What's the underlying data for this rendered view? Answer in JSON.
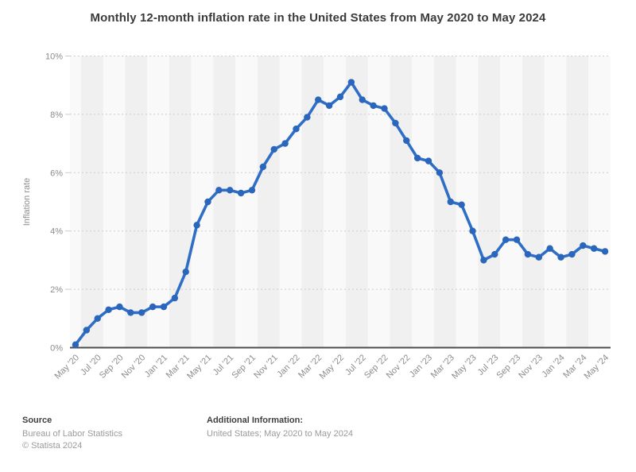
{
  "title": "Monthly 12-month inflation rate in the United States from May 2020 to May 2024",
  "chart_data": {
    "type": "line",
    "title": "Monthly 12-month inflation rate in the United States from May 2020 to May 2024",
    "xlabel": "",
    "ylabel": "Inflation rate",
    "ylim": [
      0,
      10
    ],
    "ytick_step": 2,
    "ytick_labels": [
      "0%",
      "2%",
      "4%",
      "6%",
      "8%",
      "10%"
    ],
    "xticks_every": 2,
    "grid": "horizontal-dotted",
    "legend": false,
    "background_bands": "alternating-vertical",
    "categories": [
      "May '20",
      "Jun '20",
      "Jul '20",
      "Aug '20",
      "Sep '20",
      "Oct '20",
      "Nov '20",
      "Dec '20",
      "Jan '21",
      "Feb '21",
      "Mar '21",
      "Apr '21",
      "May '21",
      "Jun '21",
      "Jul '21",
      "Aug '21",
      "Sep '21",
      "Oct '21",
      "Nov '21",
      "Dec '21",
      "Jan '22",
      "Feb '22",
      "Mar '22",
      "Apr '22",
      "May '22",
      "Jun '22",
      "Jul '22",
      "Aug '22",
      "Sep '22",
      "Oct '22",
      "Nov '22",
      "Dec '22",
      "Jan '23",
      "Feb '23",
      "Mar '23",
      "Apr '23",
      "May '23",
      "Jun '23",
      "Jul '23",
      "Aug '23",
      "Sep '23",
      "Oct '23",
      "Nov '23",
      "Dec '23",
      "Jan '24",
      "Feb '24",
      "Mar '24",
      "Apr '24",
      "May '24"
    ],
    "series": [
      {
        "name": "Inflation rate",
        "values": [
          0.1,
          0.6,
          1.0,
          1.3,
          1.4,
          1.2,
          1.2,
          1.4,
          1.4,
          1.7,
          2.6,
          4.2,
          5.0,
          5.4,
          5.4,
          5.3,
          5.4,
          6.2,
          6.8,
          7.0,
          7.5,
          7.9,
          8.5,
          8.3,
          8.6,
          9.1,
          8.5,
          8.3,
          8.2,
          7.7,
          7.1,
          6.5,
          6.4,
          6.0,
          5.0,
          4.9,
          4.0,
          3.0,
          3.2,
          3.7,
          3.7,
          3.2,
          3.1,
          3.4,
          3.1,
          3.2,
          3.5,
          3.4,
          3.3
        ]
      }
    ],
    "colors": {
      "line": "#2e6ec6",
      "marker": "#2a66bb",
      "band_light": "#f9f9fa",
      "band_dark": "#f0f0f1",
      "grid": "#cccccc",
      "axis": "#4d4d4d",
      "tick_text": "#8c8c8c"
    }
  },
  "footer": {
    "source_label": "Source",
    "source_lines": [
      "Bureau of Labor Statistics",
      "© Statista 2024"
    ],
    "additional_label": "Additional Information:",
    "additional_lines": [
      "United States; May 2020 to May 2024"
    ]
  }
}
